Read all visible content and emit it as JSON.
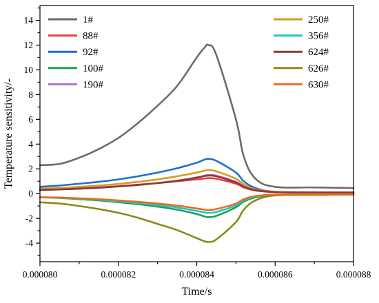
{
  "chart_data": {
    "type": "line",
    "title": "",
    "xlabel": "Time/s",
    "ylabel": "Temperature sensitivity/-",
    "xlim": [
      8e-05,
      8.8e-05
    ],
    "ylim": [
      -5.5,
      15.2
    ],
    "xticks": [
      {
        "value": 8e-05,
        "label": "0.000080"
      },
      {
        "value": 8.2e-05,
        "label": "0.000082"
      },
      {
        "value": 8.4e-05,
        "label": "0.000084"
      },
      {
        "value": 8.6e-05,
        "label": "0.000086"
      },
      {
        "value": 8.8e-05,
        "label": "0.000088"
      }
    ],
    "yticks": [
      {
        "value": -4,
        "label": "-4"
      },
      {
        "value": -2,
        "label": "-2"
      },
      {
        "value": 0,
        "label": "0"
      },
      {
        "value": 2,
        "label": "2"
      },
      {
        "value": 4,
        "label": "4"
      },
      {
        "value": 6,
        "label": "6"
      },
      {
        "value": 8,
        "label": "8"
      },
      {
        "value": 10,
        "label": "10"
      },
      {
        "value": 12,
        "label": "12"
      },
      {
        "value": 14,
        "label": "14"
      }
    ],
    "grid": false,
    "legend_placement": "top, two columns (left and right)",
    "x": [
      8e-05,
      8.05e-05,
      8.1e-05,
      8.15e-05,
      8.2e-05,
      8.25e-05,
      8.3e-05,
      8.35e-05,
      8.4e-05,
      8.42e-05,
      8.43e-05,
      8.45e-05,
      8.5e-05,
      8.52e-05,
      8.55e-05,
      8.6e-05,
      8.7e-05,
      8.8e-05
    ],
    "series": [
      {
        "name": "1#",
        "color": "#6b6b6b",
        "values": [
          2.3,
          2.4,
          2.9,
          3.6,
          4.5,
          5.7,
          7.1,
          8.7,
          11.0,
          11.8,
          12.0,
          11.2,
          6.0,
          3.0,
          1.2,
          0.55,
          0.5,
          0.45
        ]
      },
      {
        "name": "88#",
        "color": "#e8403c",
        "values": [
          0.3,
          0.35,
          0.4,
          0.5,
          0.6,
          0.72,
          0.85,
          1.0,
          1.15,
          1.22,
          1.25,
          1.2,
          0.8,
          0.5,
          0.25,
          0.12,
          0.1,
          0.1
        ]
      },
      {
        "name": "92#",
        "color": "#1e6fd0",
        "values": [
          0.55,
          0.65,
          0.8,
          0.95,
          1.15,
          1.4,
          1.7,
          2.05,
          2.5,
          2.75,
          2.8,
          2.65,
          1.7,
          1.0,
          0.45,
          0.15,
          0.1,
          0.1
        ]
      },
      {
        "name": "100#",
        "color": "#1aa05a",
        "values": [
          -0.3,
          -0.35,
          -0.45,
          -0.55,
          -0.7,
          -0.85,
          -1.05,
          -1.3,
          -1.65,
          -1.85,
          -1.9,
          -1.8,
          -1.1,
          -0.65,
          -0.3,
          -0.1,
          -0.08,
          -0.05
        ]
      },
      {
        "name": "190#",
        "color": "#a970d8",
        "values": [
          0.3,
          0.34,
          0.4,
          0.48,
          0.58,
          0.7,
          0.85,
          1.05,
          1.3,
          1.45,
          1.5,
          1.45,
          0.95,
          0.6,
          0.3,
          0.12,
          0.1,
          0.08
        ]
      },
      {
        "name": "250#",
        "color": "#d99a1a",
        "values": [
          0.4,
          0.45,
          0.55,
          0.65,
          0.78,
          0.95,
          1.15,
          1.4,
          1.7,
          1.85,
          1.9,
          1.8,
          1.2,
          0.75,
          0.35,
          0.15,
          0.1,
          0.08
        ]
      },
      {
        "name": "356#",
        "color": "#22c4c4",
        "values": [
          -0.3,
          -0.33,
          -0.4,
          -0.5,
          -0.62,
          -0.76,
          -0.92,
          -1.12,
          -1.4,
          -1.52,
          -1.55,
          -1.48,
          -0.95,
          -0.55,
          -0.25,
          -0.1,
          -0.07,
          -0.05
        ]
      },
      {
        "name": "624#",
        "color": "#8b3a3a",
        "values": [
          0.3,
          0.34,
          0.4,
          0.48,
          0.58,
          0.7,
          0.85,
          1.03,
          1.3,
          1.42,
          1.45,
          1.4,
          0.9,
          0.55,
          0.28,
          0.12,
          0.1,
          0.08
        ]
      },
      {
        "name": "626#",
        "color": "#8c8a10",
        "values": [
          -0.7,
          -0.8,
          -1.0,
          -1.25,
          -1.55,
          -1.95,
          -2.45,
          -2.95,
          -3.6,
          -3.85,
          -3.9,
          -3.7,
          -2.3,
          -1.3,
          -0.55,
          -0.15,
          -0.1,
          -0.08
        ]
      },
      {
        "name": "630#",
        "color": "#ee6a1c",
        "values": [
          -0.3,
          -0.32,
          -0.38,
          -0.45,
          -0.55,
          -0.66,
          -0.8,
          -0.97,
          -1.2,
          -1.3,
          -1.32,
          -1.25,
          -0.8,
          -0.45,
          -0.2,
          -0.08,
          -0.05,
          -0.05
        ]
      }
    ]
  }
}
